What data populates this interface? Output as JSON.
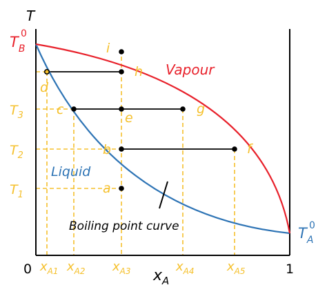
{
  "axes": {
    "y_title": "T",
    "x_title_main": "x",
    "x_title_sub": "A",
    "x_origin": "0",
    "x_end": "1",
    "tb_main": "T",
    "tb_sub": "B",
    "tb_sup": "0",
    "ta_main": "T",
    "ta_sub": "A",
    "ta_sup": "0"
  },
  "y_ticks": [
    {
      "main": "T",
      "sub": "3"
    },
    {
      "main": "T",
      "sub": "2"
    },
    {
      "main": "T",
      "sub": "1"
    }
  ],
  "x_ticks": [
    {
      "main": "x",
      "sub": "A1"
    },
    {
      "main": "x",
      "sub": "A2"
    },
    {
      "main": "x",
      "sub": "A3"
    },
    {
      "main": "x",
      "sub": "A4"
    },
    {
      "main": "x",
      "sub": "A5"
    }
  ],
  "points": {
    "i": "i",
    "h": "h",
    "d": "d",
    "c": "c",
    "e": "e",
    "g": "g",
    "b": "b",
    "f": "f",
    "a": "a"
  },
  "regions": {
    "vapour": "Vapour",
    "liquid": "Liquid",
    "curve_label": "Boiling point curve"
  },
  "colors": {
    "dew_curve": "#E8212B",
    "boiling_curve": "#2E74B5",
    "guide_lines": "#F5C02C",
    "axes": "#000000"
  }
}
